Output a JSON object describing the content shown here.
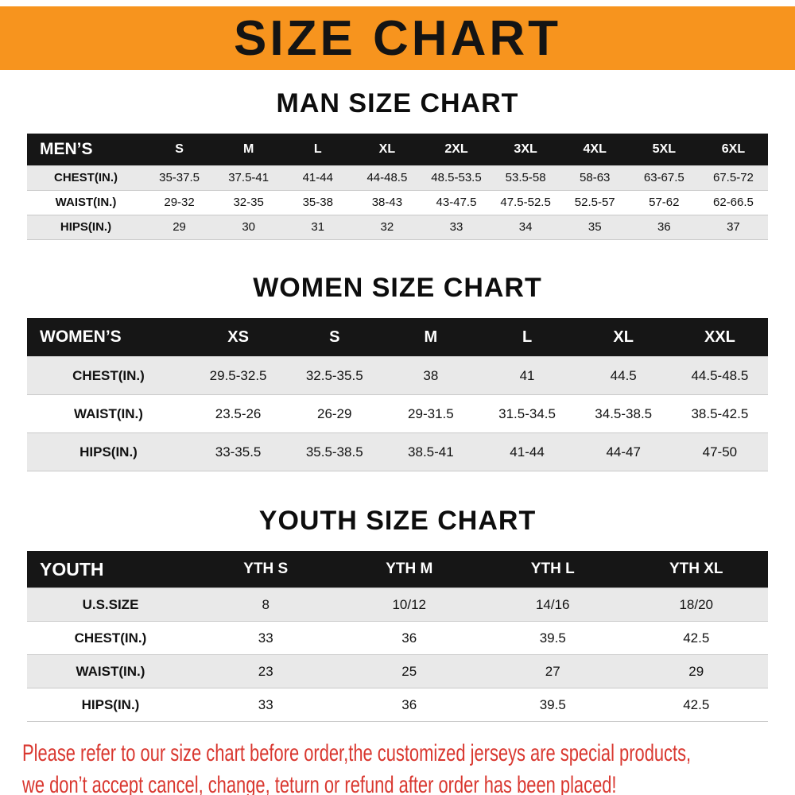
{
  "banner": {
    "title": "SIZE CHART",
    "bg_color": "#f7941e",
    "text_color": "#141414"
  },
  "sections": [
    {
      "id": "men",
      "heading": "MAN SIZE CHART",
      "table": {
        "header": [
          "MEN’S",
          "S",
          "M",
          "L",
          "XL",
          "2XL",
          "3XL",
          "4XL",
          "5XL",
          "6XL"
        ],
        "rows": [
          {
            "label": "CHEST(IN.)",
            "values": [
              "35-37.5",
              "37.5-41",
              "41-44",
              "44-48.5",
              "48.5-53.5",
              "53.5-58",
              "58-63",
              "63-67.5",
              "67.5-72"
            ]
          },
          {
            "label": "WAIST(IN.)",
            "values": [
              "29-32",
              "32-35",
              "35-38",
              "38-43",
              "43-47.5",
              "47.5-52.5",
              "52.5-57",
              "57-62",
              "62-66.5"
            ]
          },
          {
            "label": "HIPS(IN.)",
            "values": [
              "29",
              "30",
              "31",
              "32",
              "33",
              "34",
              "35",
              "36",
              "37"
            ]
          }
        ]
      }
    },
    {
      "id": "women",
      "heading": "WOMEN SIZE CHART",
      "table": {
        "header": [
          "WOMEN’S",
          "XS",
          "S",
          "M",
          "L",
          "XL",
          "XXL"
        ],
        "rows": [
          {
            "label": "CHEST(IN.)",
            "values": [
              "29.5-32.5",
              "32.5-35.5",
              "38",
              "41",
              "44.5",
              "44.5-48.5"
            ]
          },
          {
            "label": "WAIST(IN.)",
            "values": [
              "23.5-26",
              "26-29",
              "29-31.5",
              "31.5-34.5",
              "34.5-38.5",
              "38.5-42.5"
            ]
          },
          {
            "label": "HIPS(IN.)",
            "values": [
              "33-35.5",
              "35.5-38.5",
              "38.5-41",
              "41-44",
              "44-47",
              "47-50"
            ]
          }
        ]
      }
    },
    {
      "id": "youth",
      "heading": "YOUTH SIZE CHART",
      "table": {
        "header": [
          "YOUTH",
          "YTH S",
          "YTH M",
          "YTH L",
          "YTH XL"
        ],
        "rows": [
          {
            "label": "U.S.SIZE",
            "values": [
              "8",
              "10/12",
              "14/16",
              "18/20"
            ]
          },
          {
            "label": "CHEST(IN.)",
            "values": [
              "33",
              "36",
              "39.5",
              "42.5"
            ]
          },
          {
            "label": "WAIST(IN.)",
            "values": [
              "23",
              "25",
              "27",
              "29"
            ]
          },
          {
            "label": "HIPS(IN.)",
            "values": [
              "33",
              "36",
              "39.5",
              "42.5"
            ]
          }
        ]
      }
    }
  ],
  "footer": {
    "lines": [
      "Please refer to our size chart before order,the customized jerseys are special products,",
      "we don’t accept cancel, change, teturn or refund after order has been placed!"
    ],
    "text_color": "#d9372f"
  },
  "style_colors": {
    "table_header_bg": "#161616",
    "row_stripe": "#e9e9e9"
  }
}
